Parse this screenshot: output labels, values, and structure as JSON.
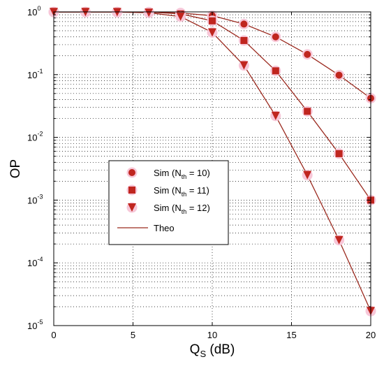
{
  "chart_data": {
    "type": "line",
    "xlabel_main": "Q",
    "xlabel_sub": "S",
    "xlabel_unit": " (dB)",
    "ylabel": "OP",
    "xlim": [
      0,
      20
    ],
    "ylim": [
      1e-05,
      1
    ],
    "yscale": "log",
    "grid": true,
    "legend_position": "center-left",
    "x_ticks": [
      "0",
      "5",
      "10",
      "15",
      "20"
    ],
    "y_ticks": [
      {
        "base": "10",
        "exp": "0"
      },
      {
        "base": "10",
        "exp": "-1"
      },
      {
        "base": "10",
        "exp": "-2"
      },
      {
        "base": "10",
        "exp": "-3"
      },
      {
        "base": "10",
        "exp": "-4"
      },
      {
        "base": "10",
        "exp": "-5"
      }
    ],
    "series": [
      {
        "name_prefix": "Sim (N",
        "name_sub": "th",
        "name_suffix": " = 10)",
        "marker": "circle",
        "color": "#c0261f",
        "x": [
          0,
          2,
          4,
          6,
          8,
          10,
          12,
          14,
          16,
          18,
          20
        ],
        "y": [
          0.995,
          0.995,
          0.995,
          0.99,
          0.96,
          0.87,
          0.64,
          0.4,
          0.21,
          0.098,
          0.042
        ]
      },
      {
        "name_prefix": "Sim (N",
        "name_sub": "th",
        "name_suffix": " = 11)",
        "marker": "square",
        "color": "#c0261f",
        "x": [
          0,
          2,
          4,
          6,
          8,
          10,
          12,
          14,
          16,
          18,
          20
        ],
        "y": [
          0.995,
          0.995,
          0.995,
          0.99,
          0.93,
          0.72,
          0.35,
          0.115,
          0.026,
          0.0055,
          0.001
        ]
      },
      {
        "name_prefix": "Sim (N",
        "name_sub": "th",
        "name_suffix": " = 12)",
        "marker": "triangle",
        "color": "#c0261f",
        "x": [
          0,
          2,
          4,
          6,
          8,
          10,
          12,
          14,
          16,
          18,
          20
        ],
        "y": [
          0.995,
          0.995,
          0.99,
          0.97,
          0.84,
          0.47,
          0.14,
          0.022,
          0.0025,
          0.00023,
          1.7e-05
        ]
      }
    ],
    "theory_label": "Theo",
    "theory_color": "#9b2a1f",
    "marker_halo_color": "#f7c7d8"
  }
}
